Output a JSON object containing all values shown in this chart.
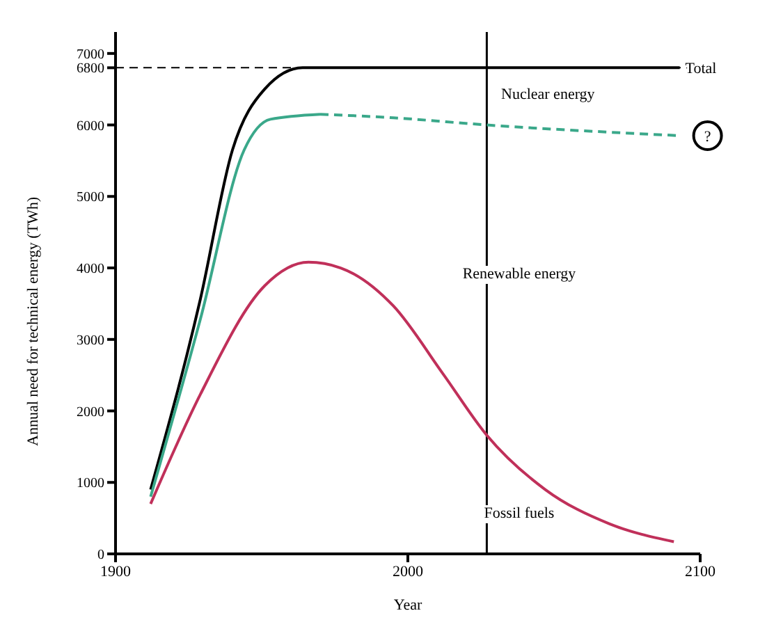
{
  "chart_data": {
    "type": "line",
    "xlabel": "Year",
    "ylabel": "Annual need for technical energy (TWh)",
    "xlim": [
      1900,
      2100
    ],
    "xticks": [
      1900,
      2000,
      2100
    ],
    "ylim": [
      0,
      7300
    ],
    "yticks": [
      0,
      1000,
      2000,
      3000,
      4000,
      5000,
      6000,
      6800,
      7000
    ],
    "marker": "none",
    "series": [
      {
        "color": "#000000",
        "line_style": "solid",
        "x": [
          1912,
          1929,
          1940,
          1951,
          1964,
          2000,
          2093
        ],
        "values": [
          900,
          3560,
          5650,
          6500,
          6800,
          6800,
          6800
        ]
      },
      {
        "color": "#3aa88a",
        "line_style": "solid",
        "x": [
          1912,
          1929,
          1944,
          1953,
          1970
        ],
        "values": [
          800,
          3280,
          5650,
          6080,
          6150
        ]
      },
      {
        "color": "#3aa88a",
        "line_style": "dashed",
        "x": [
          1970,
          1995,
          2027,
          2093
        ],
        "values": [
          6150,
          6100,
          6000,
          5850
        ]
      },
      {
        "color": "#c0305a",
        "line_style": "solid",
        "x": [
          1912,
          1929,
          1951,
          1966,
          1977,
          1995,
          2012,
          2027,
          2047,
          2069,
          2091
        ],
        "values": [
          700,
          2230,
          3750,
          4080,
          4000,
          3470,
          2520,
          1660,
          900,
          420,
          170
        ]
      }
    ],
    "ref_lines": [
      {
        "axis": "y",
        "value": 6800,
        "line_style": "dashed",
        "color": "#000000"
      },
      {
        "axis": "x",
        "value": 2027,
        "line_style": "solid",
        "color": "#000000"
      }
    ],
    "annotations": [
      {
        "text": "Total",
        "x": 2093,
        "y": 6800
      },
      "Nuclear energy",
      "Renewable energy",
      "Fossil fuels",
      {
        "text": "?",
        "x": 2093,
        "y": 5850
      }
    ]
  }
}
